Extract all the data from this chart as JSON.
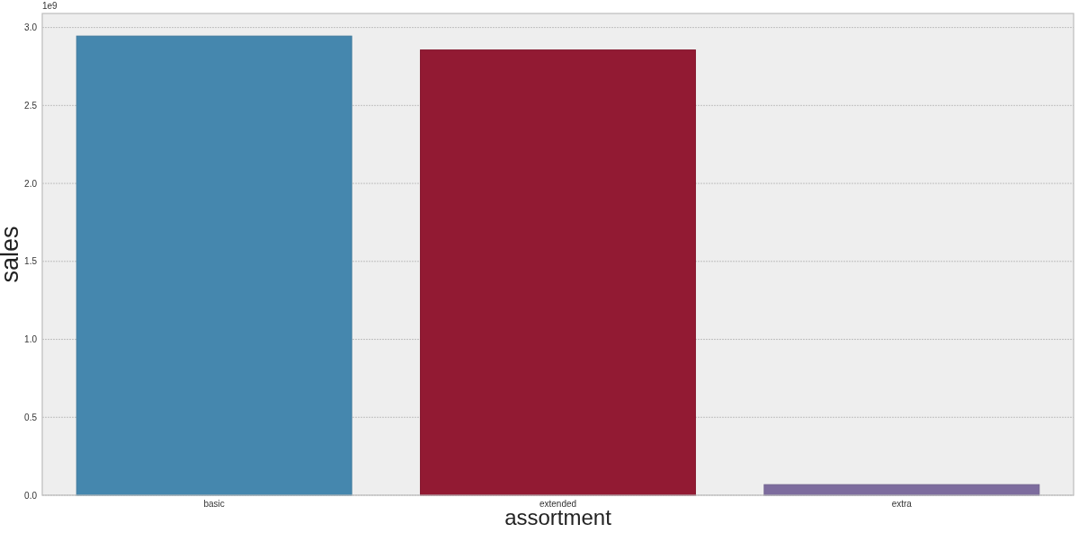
{
  "chart_data": {
    "type": "bar",
    "xlabel": "assortment",
    "ylabel": "sales",
    "annotations": [
      "1e9"
    ],
    "categories": [
      "basic",
      "extended",
      "extra"
    ],
    "values": [
      2.945,
      2.856,
      0.068
    ],
    "colors": [
      "#4587ae",
      "#921a33",
      "#7d6c9e"
    ],
    "ylim": [
      0,
      3.09
    ],
    "yticks": [
      {
        "value": 0,
        "label": "0.0"
      },
      0.5,
      {
        "value": 1,
        "label": "1.0"
      },
      1.5,
      {
        "value": 2,
        "label": "2.0"
      },
      2.5,
      {
        "value": 3,
        "label": "3.0"
      }
    ],
    "grid": "y"
  }
}
